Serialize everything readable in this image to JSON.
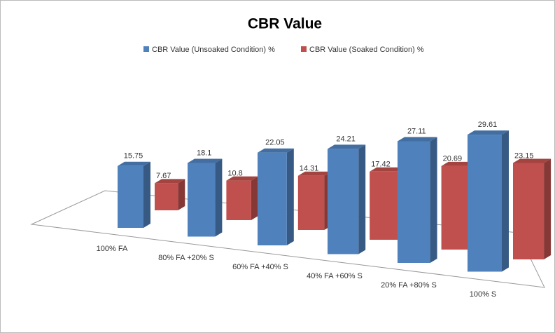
{
  "chart_data": {
    "type": "bar3d",
    "title": "CBR Value",
    "categories": [
      "100% FA",
      "80% FA +20% S",
      "60% FA +40% S",
      "40% FA +60% S",
      "20% FA +80% S",
      "100% S"
    ],
    "series": [
      {
        "name": "CBR Value (Unsoaked Condition) %",
        "color": "#4f81bd",
        "values": [
          15.75,
          18.1,
          22.05,
          24.21,
          27.11,
          29.61
        ]
      },
      {
        "name": "CBR Value (Soaked Condition) %",
        "color": "#c0504d",
        "values": [
          7.67,
          10.8,
          14.31,
          17.42,
          20.69,
          23.15
        ]
      }
    ],
    "legend": "top"
  }
}
